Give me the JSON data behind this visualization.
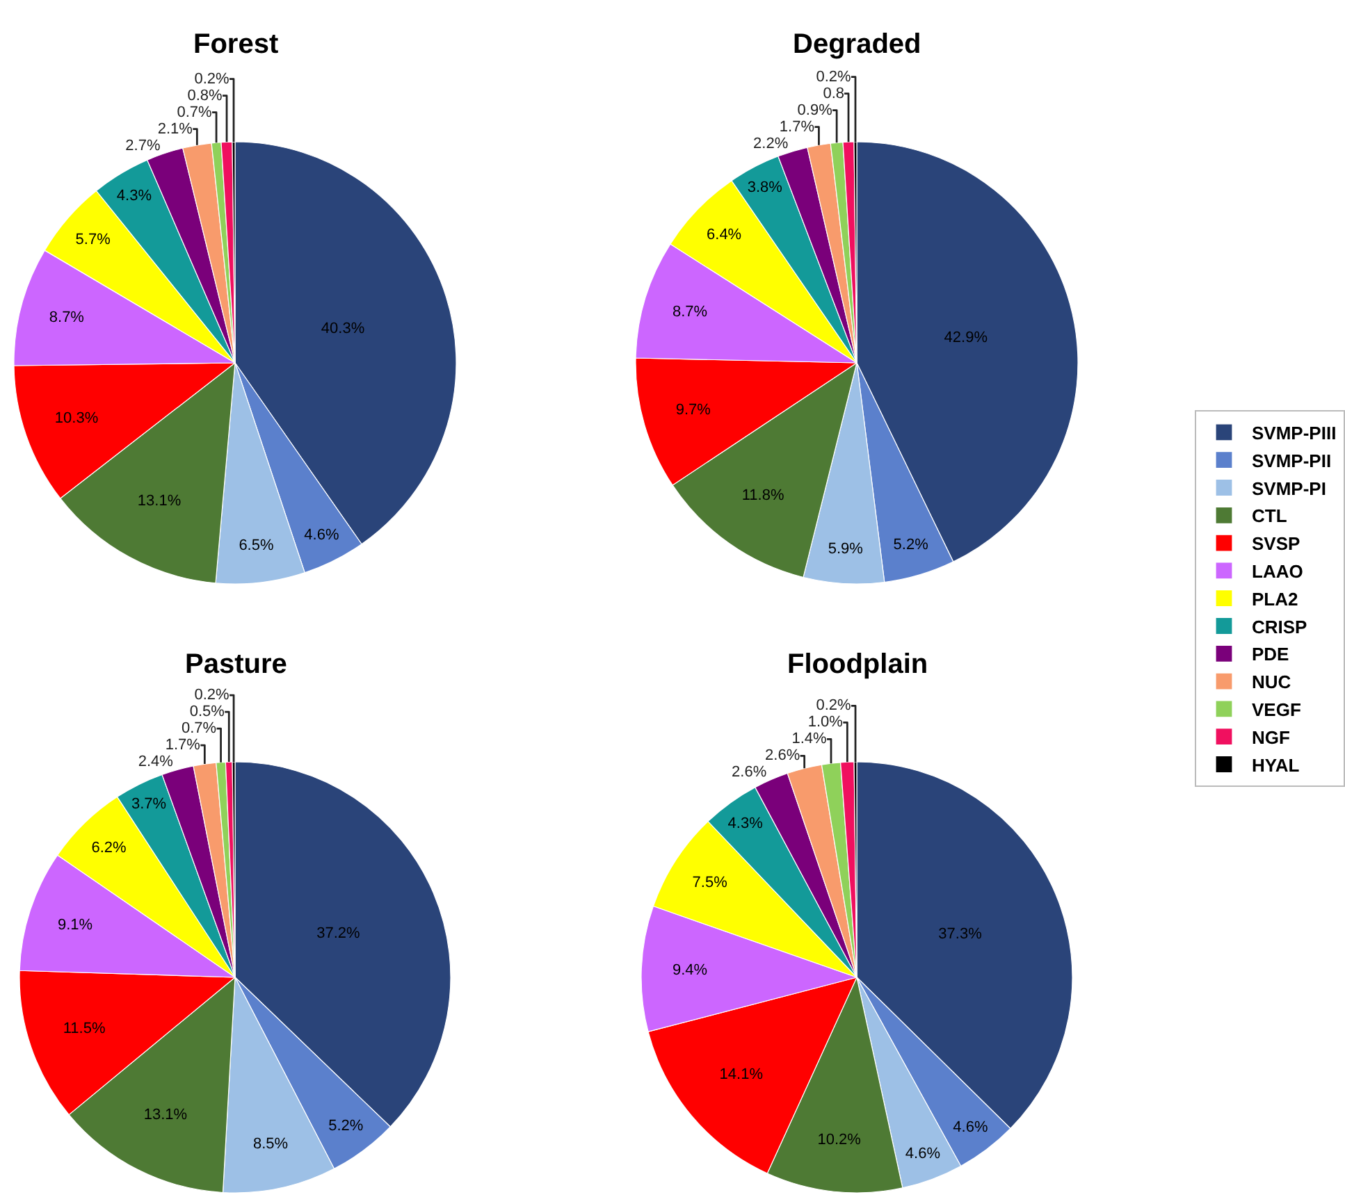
{
  "chart_data": [
    {
      "type": "pie",
      "title": "Forest",
      "categories": [
        "SVMP-PIII",
        "SVMP-PII",
        "SVMP-PI",
        "CTL",
        "SVSP",
        "LAAO",
        "PLA2",
        "CRISP",
        "PDE",
        "NUC",
        "VEGF",
        "NGF",
        "HYAL"
      ],
      "values": [
        40.3,
        4.6,
        6.5,
        13.1,
        10.3,
        8.7,
        5.7,
        4.3,
        2.7,
        2.1,
        0.7,
        0.8,
        0.2
      ],
      "value_labels": [
        "40.3%",
        "4.6%",
        "6.5%",
        "13.1%",
        "10.3%",
        "8.7%",
        "5.7%",
        "4.3%",
        "2.7%",
        "2.1%",
        "0.7%",
        "0.8%",
        "0.2%"
      ],
      "colors": [
        "#2a4479",
        "#5b80cc",
        "#9dc0e6",
        "#4e7a34",
        "#ff0000",
        "#cc66ff",
        "#ffff00",
        "#139a99",
        "#7a007a",
        "#f89b6c",
        "#8fd15a",
        "#f0105f",
        "#000000"
      ],
      "legend": "right"
    },
    {
      "type": "pie",
      "title": "Degraded",
      "categories": [
        null,
        null,
        null,
        null,
        null,
        null,
        null,
        null,
        null,
        null,
        null,
        null,
        null
      ],
      "values": [
        42.9,
        5.2,
        5.9,
        11.8,
        9.7,
        8.7,
        6.4,
        3.8,
        2.2,
        1.7,
        0.9,
        0.8,
        0.2
      ],
      "value_labels": [
        "42.9%",
        "5.2%",
        "5.9%",
        "11.8%",
        "9.7%",
        "8.7%",
        "6.4%",
        "3.8%",
        "2.2%",
        "1.7%",
        "0.9%",
        "0.8",
        "0.2%"
      ],
      "colors": [
        "#2a4479",
        "#5b80cc",
        "#9dc0e6",
        "#4e7a34",
        "#ff0000",
        "#cc66ff",
        "#ffff00",
        "#139a99",
        "#7a007a",
        "#f89b6c",
        "#8fd15a",
        "#f0105f",
        "#000000"
      ],
      "legend": false
    },
    {
      "type": "pie",
      "title": "Pasture",
      "categories": [
        null,
        null,
        null,
        null,
        null,
        null,
        null,
        null,
        null,
        null,
        null,
        null,
        null
      ],
      "values": [
        37.2,
        5.2,
        8.5,
        13.1,
        11.5,
        9.1,
        6.2,
        3.7,
        2.4,
        1.7,
        0.7,
        0.5,
        0.2
      ],
      "value_labels": [
        "37.2%",
        "5.2%",
        "8.5%",
        "13.1%",
        "11.5%",
        "9.1%",
        "6.2%",
        "3.7%",
        "2.4%",
        "1.7%",
        "0.7%",
        "0.5%",
        "0.2%"
      ],
      "colors": [
        "#2a4479",
        "#5b80cc",
        "#9dc0e6",
        "#4e7a34",
        "#ff0000",
        "#cc66ff",
        "#ffff00",
        "#139a99",
        "#7a007a",
        "#f89b6c",
        "#8fd15a",
        "#f0105f",
        "#000000"
      ],
      "legend": false
    },
    {
      "type": "pie",
      "title": "Floodplain",
      "categories": [
        null,
        null,
        null,
        null,
        null,
        null,
        null,
        null,
        null,
        null,
        null,
        null,
        null
      ],
      "values": [
        37.3,
        4.6,
        4.6,
        10.2,
        14.1,
        9.4,
        7.5,
        4.3,
        2.6,
        2.6,
        1.4,
        1.0,
        0.2
      ],
      "value_labels": [
        "37.3%",
        "4.6%",
        "4.6%",
        "10.2%",
        "14.1%",
        "9.4%",
        "7.5%",
        "4.3%",
        "2.6%",
        "2.6%",
        "1.4%",
        "1.0%",
        "0.2%"
      ],
      "colors": [
        "#2a4479",
        "#5b80cc",
        "#9dc0e6",
        "#4e7a34",
        "#ff0000",
        "#cc66ff",
        "#ffff00",
        "#139a99",
        "#7a007a",
        "#f89b6c",
        "#8fd15a",
        "#f0105f",
        "#000000"
      ],
      "legend": false
    }
  ]
}
